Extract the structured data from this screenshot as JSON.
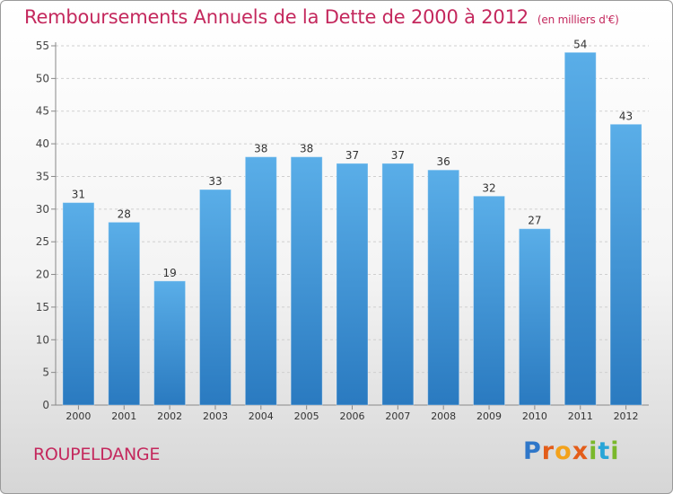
{
  "title": {
    "main": "Remboursements Annuels de la Dette de 2000 à 2012",
    "unit": "(en milliers d'€)"
  },
  "commune": "ROUPELDANGE",
  "logo": {
    "text": "Proxiti",
    "letters": [
      {
        "ch": "P",
        "color": "#2f77c9"
      },
      {
        "ch": "r",
        "color": "#e35d1a"
      },
      {
        "ch": "o",
        "color": "#f3a21b"
      },
      {
        "ch": "x",
        "color": "#e35d1a"
      },
      {
        "ch": "i",
        "color": "#7ab82b"
      },
      {
        "ch": "t",
        "color": "#28a5d7"
      },
      {
        "ch": "i",
        "color": "#7ab82b"
      }
    ]
  },
  "colors": {
    "bar_top": "#5aaee8",
    "bar_bottom": "#2a7ac0",
    "title": "#c4285d",
    "grid": "#cfcfcf"
  },
  "chart_data": {
    "type": "bar",
    "categories": [
      "2000",
      "2001",
      "2002",
      "2003",
      "2004",
      "2005",
      "2006",
      "2007",
      "2008",
      "2009",
      "2010",
      "2011",
      "2012"
    ],
    "values": [
      31,
      28,
      19,
      33,
      38,
      38,
      37,
      37,
      36,
      32,
      27,
      54,
      43
    ],
    "ylim": [
      0,
      55
    ],
    "yticks": [
      0,
      5,
      10,
      15,
      20,
      25,
      30,
      35,
      40,
      45,
      50,
      55
    ],
    "grid": true,
    "data_labels": true
  }
}
